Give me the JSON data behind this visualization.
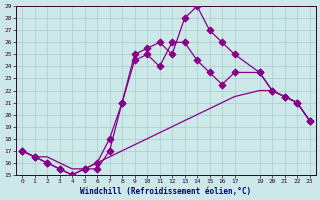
{
  "xlabel": "Windchill (Refroidissement éolien,°C)",
  "bg_color": "#cce8e8",
  "grid_color": "#aacccc",
  "line_color": "#880088",
  "line1_x": [
    0,
    1,
    2,
    3,
    4,
    5,
    6,
    7,
    8,
    9,
    10,
    11,
    12,
    13,
    14,
    15,
    16,
    17,
    19,
    20,
    21,
    22,
    23
  ],
  "line1_y": [
    17,
    16.5,
    16,
    15.5,
    15,
    15.5,
    16,
    18,
    21,
    25,
    25.5,
    26,
    25,
    28,
    29,
    27,
    26,
    25,
    23.5,
    22,
    21.5,
    21,
    19.5
  ],
  "line2_x": [
    0,
    1,
    2,
    3,
    4,
    5,
    6,
    7,
    8,
    9,
    10,
    11,
    12,
    13,
    14,
    15,
    16,
    17,
    19,
    20,
    21,
    22,
    23
  ],
  "line2_y": [
    17,
    16.5,
    16.5,
    16,
    15.5,
    15.5,
    16,
    16.5,
    17,
    17.5,
    18,
    18.5,
    19,
    19.5,
    20,
    20.5,
    21,
    21.5,
    22,
    22,
    21.5,
    21,
    19.5
  ],
  "line3_x": [
    0,
    1,
    2,
    3,
    4,
    5,
    6,
    7,
    8,
    9,
    10,
    11,
    12,
    13,
    14,
    15,
    16,
    17,
    19,
    20,
    21,
    22,
    23
  ],
  "line3_y": [
    17,
    16.5,
    16,
    15.5,
    15,
    15.5,
    15.5,
    17,
    21,
    24.5,
    25,
    24,
    26,
    26,
    24.5,
    23.5,
    22.5,
    23.5,
    23.5,
    22,
    21.5,
    21,
    19.5
  ],
  "xlim": [
    -0.5,
    23.5
  ],
  "ylim": [
    15,
    29
  ],
  "xticks": [
    0,
    1,
    2,
    3,
    4,
    5,
    6,
    7,
    8,
    9,
    10,
    11,
    12,
    13,
    14,
    15,
    16,
    17,
    19,
    20,
    21,
    22,
    23
  ],
  "yticks": [
    15,
    16,
    17,
    18,
    19,
    20,
    21,
    22,
    23,
    24,
    25,
    26,
    27,
    28,
    29
  ],
  "xlabel_color": "#000080",
  "figsize": [
    3.2,
    2.0
  ],
  "dpi": 100
}
